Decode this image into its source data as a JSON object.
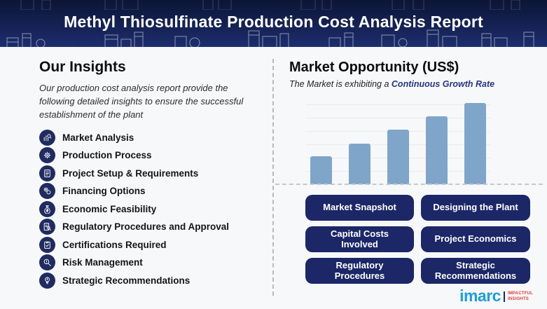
{
  "header": {
    "title": "Methyl Thiosulfinate Production Cost Analysis Report"
  },
  "insights": {
    "heading": "Our Insights",
    "description": "Our production cost analysis report provide the following detailed insights to ensure the successful establishment of the plant",
    "items": [
      {
        "label": "Market Analysis",
        "icon": "market-analysis-icon"
      },
      {
        "label": "Production Process",
        "icon": "production-process-icon"
      },
      {
        "label": "Project Setup & Requirements",
        "icon": "project-setup-icon"
      },
      {
        "label": "Financing Options",
        "icon": "financing-options-icon"
      },
      {
        "label": "Economic Feasibility",
        "icon": "economic-feasibility-icon"
      },
      {
        "label": "Regulatory Procedures and Approval",
        "icon": "regulatory-procedures-icon"
      },
      {
        "label": "Certifications Required",
        "icon": "certifications-icon"
      },
      {
        "label": "Risk Management",
        "icon": "risk-management-icon"
      },
      {
        "label": "Strategic Recommendations",
        "icon": "strategic-recommendations-icon"
      }
    ]
  },
  "market": {
    "heading": "Market Opportunity (US$)",
    "subtitle_prefix": "The Market is exhibiting a ",
    "subtitle_highlight": "Continuous Growth Rate"
  },
  "chart_data": {
    "type": "bar",
    "title": "Market Opportunity (US$)",
    "subtitle": "The Market is exhibiting a Continuous Growth Rate",
    "categories": [
      "",
      "",
      "",
      "",
      ""
    ],
    "values": [
      40,
      58,
      78,
      97,
      116
    ],
    "xlabel": "",
    "ylabel": "",
    "ylim": [
      0,
      122
    ],
    "grid": "faint horizontal lines",
    "baseline_style": "dashed",
    "bar_color": "#7fa6c8",
    "legend": "none",
    "axis_labels_shown": false
  },
  "buttons": [
    {
      "label": "Market Snapshot"
    },
    {
      "label": "Designing the Plant"
    },
    {
      "label": "Capital Costs Involved"
    },
    {
      "label": "Project Economics"
    },
    {
      "label": "Regulatory Procedures"
    },
    {
      "label": "Strategic Recommendations"
    }
  ],
  "logo": {
    "name": "imarc",
    "tagline_line1": "IMPACTFUL",
    "tagline_line2": "INSIGHTS"
  },
  "colors": {
    "header_navy": "#152254",
    "icon_circle_navy": "#202b60",
    "button_navy": "#1b2766",
    "bar_blue": "#7fa6c8",
    "highlight_blue": "#28367f",
    "logo_blue": "#1e9fd9",
    "logo_red": "#e23b35",
    "background": "#f7f8f9"
  }
}
